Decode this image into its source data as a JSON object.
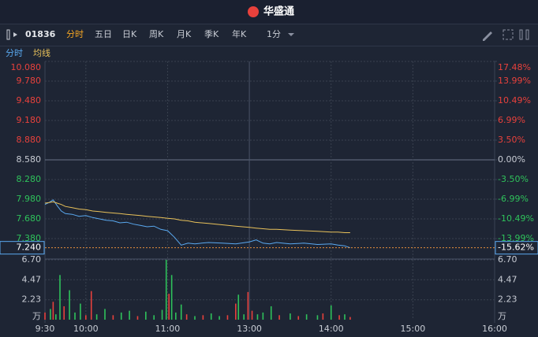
{
  "header": {
    "logo": "华盛通"
  },
  "toolbar": {
    "code": "01836",
    "tabs": [
      "分时",
      "五日",
      "日K",
      "周K",
      "月K",
      "季K",
      "年K"
    ],
    "interval": "1分"
  },
  "chart_data": [
    {
      "type": "line",
      "x": [
        0,
        3,
        6,
        9,
        12,
        15,
        20,
        25,
        30,
        35,
        40,
        45,
        50,
        55,
        60,
        65,
        70,
        75,
        80,
        85,
        90,
        95,
        100,
        105,
        110,
        115,
        120,
        130,
        140,
        150,
        155,
        160,
        165,
        170,
        180,
        190,
        200,
        210,
        215,
        220,
        224
      ],
      "series": [
        {
          "name": "分时",
          "color": "#5aa9f0",
          "values": [
            7.9,
            7.93,
            7.97,
            7.88,
            7.8,
            7.76,
            7.75,
            7.72,
            7.73,
            7.7,
            7.68,
            7.66,
            7.65,
            7.62,
            7.63,
            7.6,
            7.58,
            7.56,
            7.57,
            7.52,
            7.5,
            7.4,
            7.28,
            7.31,
            7.3,
            7.31,
            7.32,
            7.31,
            7.3,
            7.33,
            7.36,
            7.31,
            7.3,
            7.32,
            7.3,
            7.31,
            7.29,
            7.3,
            7.28,
            7.27,
            7.24
          ]
        },
        {
          "name": "均线",
          "color": "#e8c15a",
          "values": [
            7.92,
            7.93,
            7.94,
            7.92,
            7.9,
            7.87,
            7.85,
            7.83,
            7.82,
            7.8,
            7.79,
            7.78,
            7.77,
            7.76,
            7.75,
            7.74,
            7.73,
            7.72,
            7.71,
            7.7,
            7.69,
            7.68,
            7.66,
            7.65,
            7.63,
            7.62,
            7.61,
            7.59,
            7.57,
            7.55,
            7.54,
            7.53,
            7.52,
            7.52,
            7.51,
            7.5,
            7.49,
            7.48,
            7.48,
            7.47,
            7.47
          ]
        }
      ],
      "xlim": [
        0,
        330
      ],
      "ylim": [
        7.08,
        10.08
      ],
      "yticks": [
        {
          "value": 10.08,
          "label": "10.080"
        },
        {
          "value": 9.78,
          "label": "9.780"
        },
        {
          "value": 9.48,
          "label": "9.480"
        },
        {
          "value": 9.18,
          "label": "9.180"
        },
        {
          "value": 8.88,
          "label": "8.880"
        },
        {
          "value": 8.58,
          "label": "8.580"
        },
        {
          "value": 8.28,
          "label": "8.280"
        },
        {
          "value": 7.98,
          "label": "7.980"
        },
        {
          "value": 7.68,
          "label": "7.680"
        },
        {
          "value": 7.38,
          "label": "7.380"
        }
      ],
      "y2lim": [
        -17.48,
        17.48
      ],
      "y2ticks": [
        {
          "value": 17.48,
          "label": "17.48%"
        },
        {
          "value": 13.99,
          "label": "13.99%"
        },
        {
          "value": 10.49,
          "label": "10.49%"
        },
        {
          "value": 6.99,
          "label": "6.99%"
        },
        {
          "value": 3.5,
          "label": "3.50%"
        },
        {
          "value": 0,
          "label": "0.00%"
        },
        {
          "value": -3.5,
          "label": "-3.50%"
        },
        {
          "value": -6.99,
          "label": "-6.99%"
        },
        {
          "value": -10.49,
          "label": "-10.49%"
        },
        {
          "value": -13.99,
          "label": "-13.99%"
        }
      ],
      "last_price": {
        "value": 7.24,
        "label": "7.240"
      },
      "last_change": {
        "value": -15.62,
        "label": "-15.62%"
      },
      "up_color": "#e8413c",
      "down_color": "#2fc25b"
    },
    {
      "type": "bar",
      "x": [
        0,
        4,
        6,
        8,
        11,
        14,
        18,
        22,
        26,
        30,
        34,
        38,
        44,
        50,
        56,
        62,
        68,
        74,
        80,
        86,
        89,
        91,
        93,
        96,
        100,
        104,
        110,
        116,
        122,
        128,
        134,
        140,
        142,
        146,
        149,
        152,
        156,
        160,
        166,
        172,
        180,
        186,
        192,
        200,
        204,
        210,
        216,
        220,
        224
      ],
      "values": [
        0.8,
        1.2,
        2.0,
        0.6,
        5.0,
        1.5,
        3.3,
        0.8,
        1.8,
        0.5,
        3.2,
        0.6,
        1.2,
        0.5,
        0.8,
        1.0,
        0.4,
        0.9,
        0.5,
        1.1,
        6.7,
        2.9,
        5.0,
        0.8,
        1.7,
        0.6,
        0.4,
        0.5,
        0.7,
        0.4,
        0.5,
        1.8,
        2.8,
        0.6,
        3.1,
        1.0,
        0.6,
        0.8,
        1.5,
        0.5,
        0.7,
        0.4,
        0.6,
        0.5,
        0.7,
        1.6,
        0.5,
        0.6,
        0.3
      ],
      "colors": [
        "#e8413c",
        "#2fc25b",
        "#e8413c",
        "#2fc25b",
        "#2fc25b",
        "#e8413c",
        "#2fc25b",
        "#2fc25b",
        "#2fc25b",
        "#e8413c",
        "#e8413c",
        "#2fc25b",
        "#2fc25b",
        "#e8413c",
        "#2fc25b",
        "#2fc25b",
        "#e8413c",
        "#2fc25b",
        "#2fc25b",
        "#2fc25b",
        "#2fc25b",
        "#e8413c",
        "#2fc25b",
        "#2fc25b",
        "#2fc25b",
        "#e8413c",
        "#2fc25b",
        "#e8413c",
        "#2fc25b",
        "#2fc25b",
        "#e8413c",
        "#e8413c",
        "#2fc25b",
        "#2fc25b",
        "#e8413c",
        "#e8413c",
        "#2fc25b",
        "#2fc25b",
        "#2fc25b",
        "#e8413c",
        "#2fc25b",
        "#e8413c",
        "#2fc25b",
        "#2fc25b",
        "#e8413c",
        "#2fc25b",
        "#e8413c",
        "#2fc25b",
        "#e8413c"
      ],
      "xlim": [
        0,
        330
      ],
      "xticks": [
        {
          "value": 0,
          "label": "9:30"
        },
        {
          "value": 30,
          "label": "10:00"
        },
        {
          "value": 90,
          "label": "11:00"
        },
        {
          "value": 150,
          "label": "13:00"
        },
        {
          "value": 210,
          "label": "14:00"
        },
        {
          "value": 270,
          "label": "15:00"
        },
        {
          "value": 330,
          "label": "16:00"
        }
      ],
      "ylim": [
        0,
        6.7
      ],
      "yticks": [
        {
          "value": 6.7,
          "label": "6.70"
        },
        {
          "value": 4.47,
          "label": "4.47"
        },
        {
          "value": 2.23,
          "label": "2.23"
        }
      ],
      "unit": "万"
    }
  ]
}
